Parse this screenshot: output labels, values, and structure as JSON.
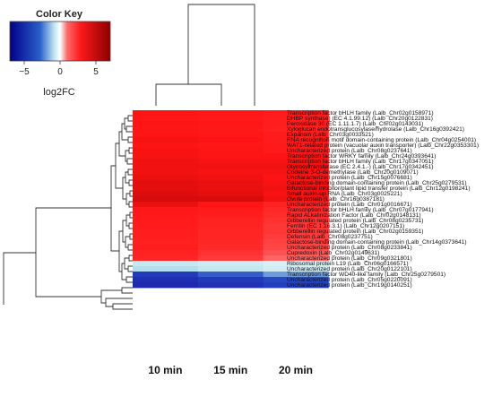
{
  "chart_data": {
    "type": "heatmap",
    "title": "",
    "xlabel": "",
    "ylabel": "",
    "columns": [
      "10 min",
      "15 min",
      "20 min"
    ],
    "color_key": {
      "title": "Color Key",
      "label": "log2FC",
      "ticks": [
        -5,
        0,
        5
      ],
      "range": [
        -7,
        7
      ],
      "low_color": "#1a1aa6",
      "mid_color": "#ffffff",
      "high_color": "#a00000"
    },
    "rows": [
      {
        "label": "Transcription factor bHLH family (Lalb_Chr02g0158971)",
        "values": [
          5.6,
          5.5,
          5.3
        ]
      },
      {
        "label": "DHBP synthase) (EC 4.1.99.12) (Lalb_Chr20g0122831)",
        "values": [
          5.5,
          5.4,
          5.2
        ]
      },
      {
        "label": "Peroxidase 30 (EC 1.11.1.7) (Lalb_Chr02g0143031)",
        "values": [
          5.6,
          5.5,
          5.2
        ]
      },
      {
        "label": "Xyloglucan endotransglucosylase/hydrolase (Lalb_Chr16g0392421)",
        "values": [
          5.5,
          5.4,
          5.1
        ]
      },
      {
        "label": "Expansin (Lalb_Chr03g0033521)",
        "values": [
          5.6,
          5.5,
          5.3
        ]
      },
      {
        "label": "RNA recognition motif domain-containing protein (Lalb_Chr04g0254001)",
        "values": [
          5.7,
          5.6,
          5.3
        ]
      },
      {
        "label": "WAT1-related protein (vacuolar auxin transporter) (Lalb_Chr22g0353301)",
        "values": [
          5.6,
          5.5,
          5.4
        ]
      },
      {
        "label": "Uncharacterized protein (Lalb_Chr08g0237641)",
        "values": [
          5.7,
          5.6,
          5.4
        ]
      },
      {
        "label": "Transcription factor WRKY family (Lalb_Chr24g0393641)",
        "values": [
          5.7,
          5.6,
          5.6
        ]
      },
      {
        "label": "Transcription factor bHLH family (Lalb_Chr17g0347051)",
        "values": [
          5.8,
          5.7,
          5.7
        ]
      },
      {
        "label": "Glycosyltransferase (EC 2.4.1.-) (Lalb_Chr17g0342451)",
        "values": [
          5.8,
          5.8,
          5.8
        ]
      },
      {
        "label": "Codeine 3-O-demethylase (Lalb_Chr20g0109071)",
        "values": [
          5.8,
          5.7,
          5.7
        ]
      },
      {
        "label": "Uncharacterized protein (Lalb_Chr15g0076681)",
        "values": [
          5.9,
          5.8,
          5.6
        ]
      },
      {
        "label": "Galactose-binding domain-containing protein (Lalb_Chr25g0279531)",
        "values": [
          6.0,
          5.9,
          5.7
        ]
      },
      {
        "label": "Bifunctional inhibitor/plant lipid transfer protein (Lalb_Chr12g0198241)",
        "values": [
          6.0,
          5.9,
          5.8
        ]
      },
      {
        "label": "Small auxin-up RNA (Lalb_Chr03g0025221)",
        "values": [
          6.1,
          6.0,
          5.7
        ]
      },
      {
        "label": "Ovule protein (Lalb_Chr16g0387181)",
        "values": [
          6.2,
          6.2,
          5.8
        ]
      },
      {
        "label": "Uncharacterized protein (Lalb_Chr01g0016671)",
        "values": [
          5.9,
          5.6,
          5.0
        ]
      },
      {
        "label": "Transcription factor bHLH family (Lalb_Chr07g0177941)",
        "values": [
          5.5,
          5.3,
          4.8
        ]
      },
      {
        "label": "Rapid ALkalinization Factor (Lalb_Chr02g0148131)",
        "values": [
          5.4,
          5.2,
          4.6
        ]
      },
      {
        "label": "Gibberellin regulated protein (Lalb_Chr08g0235731)",
        "values": [
          5.3,
          5.0,
          4.4
        ]
      },
      {
        "label": "Ferritin (EC 1.16.3.1) (Lalb_Chr12g0207151)",
        "values": [
          5.3,
          5.0,
          4.2
        ]
      },
      {
        "label": "Gibberellin regulated protein (Lalb_Chr02g0159351)",
        "values": [
          5.2,
          4.9,
          4.2
        ]
      },
      {
        "label": "Defensin (Lalb_Chr08g0237751)",
        "values": [
          5.2,
          4.9,
          4.0
        ]
      },
      {
        "label": "Galactose-binding domain-containing protein (Lalb_Chr14g0373641)",
        "values": [
          5.1,
          4.8,
          3.8
        ]
      },
      {
        "label": "Uncharacterized protein (Lalb_Chr08g0233841)",
        "values": [
          5.2,
          4.7,
          3.6
        ]
      },
      {
        "label": "Cupredoxin (Lalb_Chr02g0149631)",
        "values": [
          5.0,
          4.4,
          3.2
        ]
      },
      {
        "label": "Uncharacterized protein (Lalb_Chr09g0321801)",
        "values": [
          4.9,
          4.1,
          2.6
        ]
      },
      {
        "label": "Ribosomal protein L19 (Lalb_Chr06g0166571)",
        "values": [
          -1.2,
          -1.0,
          -0.8
        ]
      },
      {
        "label": "Uncharacterized protein (Lalb_Chr20g0122101)",
        "values": [
          -1.6,
          -1.2,
          -0.9
        ]
      },
      {
        "label": "Transcription factor WD40-like family (Lalb_Chr25g0279501)",
        "values": [
          -5.8,
          -4.6,
          -3.2
        ]
      },
      {
        "label": "Uncharacterized protein (Lalb_Chr05g0220091)",
        "values": [
          -6.2,
          -5.8,
          -5.2
        ]
      },
      {
        "label": "Uncharacterized protein (Lalb_Chr19g0140251)",
        "values": [
          -6.4,
          -6.1,
          -5.6
        ]
      }
    ]
  }
}
